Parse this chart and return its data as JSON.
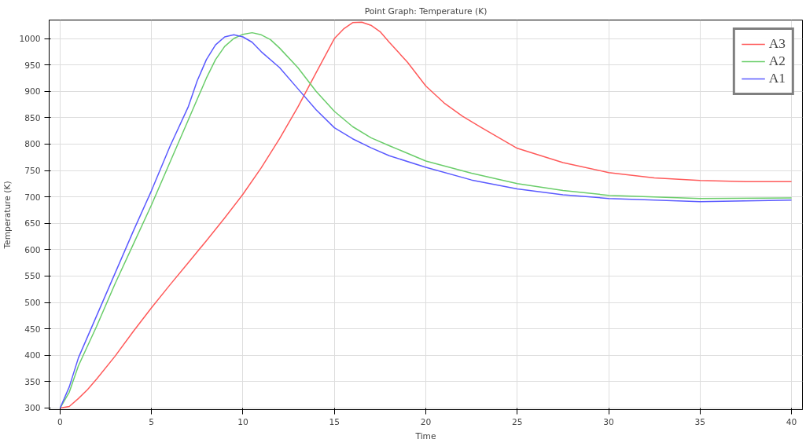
{
  "chart_data": {
    "type": "line",
    "title": "Point Graph: Temperature (K)",
    "xlabel": "Time",
    "ylabel": "Temperature (K)",
    "xlim": [
      -0.6,
      40.6
    ],
    "ylim": [
      297,
      1035
    ],
    "xticks": [
      0,
      5,
      10,
      15,
      20,
      25,
      30,
      35,
      40
    ],
    "yticks": [
      300,
      350,
      400,
      450,
      500,
      550,
      600,
      650,
      700,
      750,
      800,
      850,
      900,
      950,
      1000
    ],
    "grid": true,
    "legend": "top right",
    "marker": "none",
    "line_style": "solid",
    "series": [
      {
        "name": "A3",
        "color": "#ff5a5a",
        "x": [
          0,
          0.5,
          1,
          1.5,
          2,
          3,
          4,
          5,
          6,
          7,
          8,
          9,
          10,
          11,
          12,
          13,
          14,
          15,
          15.5,
          16,
          16.5,
          17,
          17.5,
          18,
          19,
          20,
          21,
          22,
          23,
          25,
          27.5,
          30,
          32.5,
          35,
          37.5,
          40
        ],
        "values": [
          300,
          303,
          318,
          335,
          355,
          398,
          445,
          490,
          533,
          575,
          617,
          660,
          705,
          755,
          810,
          870,
          935,
          1000,
          1018,
          1030,
          1031,
          1025,
          1013,
          993,
          955,
          910,
          878,
          853,
          832,
          792,
          765,
          746,
          736,
          731,
          729,
          729
        ]
      },
      {
        "name": "A2",
        "color": "#6acd6a",
        "x": [
          0,
          0.5,
          1,
          2,
          3,
          4,
          5,
          6,
          7,
          7.5,
          8,
          8.5,
          9,
          9.5,
          10,
          10.5,
          11,
          11.5,
          12,
          13,
          14,
          15,
          16,
          17,
          18,
          20,
          22.5,
          25,
          27.5,
          30,
          35,
          40
        ],
        "values": [
          300,
          330,
          380,
          455,
          535,
          610,
          685,
          765,
          845,
          885,
          925,
          960,
          985,
          1000,
          1008,
          1011,
          1007,
          998,
          982,
          945,
          900,
          862,
          833,
          812,
          797,
          768,
          745,
          725,
          712,
          703,
          697,
          698
        ]
      },
      {
        "name": "A1",
        "color": "#5a5aff",
        "x": [
          0,
          0.5,
          1,
          2,
          3,
          4,
          5,
          6,
          7,
          7.5,
          8,
          8.5,
          9,
          9.5,
          10,
          10.5,
          11,
          12,
          13,
          14,
          15,
          16,
          17,
          18,
          20,
          22.5,
          25,
          27.5,
          30,
          35,
          40
        ],
        "values": [
          300,
          340,
          395,
          475,
          555,
          635,
          712,
          795,
          870,
          920,
          960,
          988,
          1003,
          1007,
          1003,
          993,
          975,
          945,
          905,
          865,
          831,
          810,
          793,
          778,
          756,
          732,
          715,
          704,
          697,
          691,
          694
        ]
      }
    ]
  }
}
